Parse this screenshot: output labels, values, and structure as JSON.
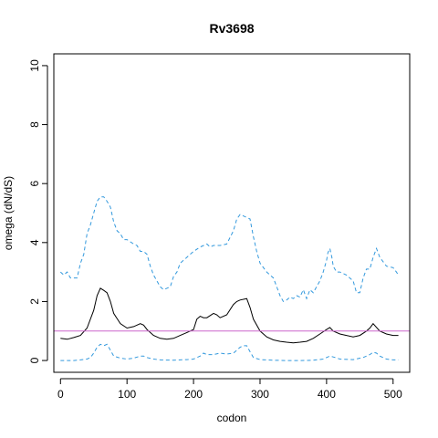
{
  "chart_data": {
    "type": "line",
    "title": "Rv3698",
    "xlabel": "codon",
    "ylabel": "omega (dN/dS)",
    "xlim": [
      -10,
      525
    ],
    "ylim": [
      -0.4,
      10.4
    ],
    "xticks": [
      0,
      100,
      200,
      300,
      400,
      500
    ],
    "yticks": [
      0,
      2,
      4,
      6,
      8,
      10
    ],
    "grid": false,
    "legend": "none",
    "reference_line": {
      "y": 1,
      "color": "#cc66cc"
    },
    "series": [
      {
        "style": "solid",
        "color": "#000000",
        "x": [
          0,
          10,
          20,
          30,
          40,
          50,
          55,
          60,
          65,
          70,
          75,
          80,
          90,
          100,
          110,
          120,
          125,
          130,
          140,
          150,
          160,
          170,
          180,
          190,
          200,
          205,
          210,
          215,
          220,
          230,
          235,
          240,
          250,
          260,
          265,
          270,
          280,
          285,
          290,
          300,
          310,
          320,
          330,
          340,
          350,
          360,
          370,
          380,
          390,
          400,
          405,
          410,
          420,
          430,
          440,
          450,
          460,
          465,
          470,
          480,
          490,
          500,
          508
        ],
        "y": [
          0.75,
          0.72,
          0.78,
          0.85,
          1.1,
          1.7,
          2.2,
          2.45,
          2.38,
          2.3,
          2.0,
          1.6,
          1.25,
          1.1,
          1.15,
          1.25,
          1.2,
          1.05,
          0.85,
          0.75,
          0.72,
          0.75,
          0.85,
          0.95,
          1.05,
          1.4,
          1.5,
          1.45,
          1.45,
          1.6,
          1.55,
          1.45,
          1.55,
          1.9,
          2.0,
          2.05,
          2.1,
          1.8,
          1.4,
          1.0,
          0.8,
          0.7,
          0.65,
          0.62,
          0.6,
          0.62,
          0.65,
          0.75,
          0.9,
          1.05,
          1.12,
          1.0,
          0.9,
          0.85,
          0.8,
          0.85,
          1.0,
          1.1,
          1.25,
          1.0,
          0.9,
          0.85,
          0.85
        ]
      },
      {
        "style": "dashed",
        "color": "#3399dd",
        "x": [
          0,
          5,
          10,
          15,
          20,
          25,
          30,
          35,
          40,
          45,
          50,
          55,
          60,
          65,
          70,
          75,
          80,
          85,
          90,
          95,
          100,
          110,
          115,
          120,
          125,
          130,
          135,
          140,
          150,
          155,
          160,
          165,
          170,
          175,
          180,
          190,
          200,
          210,
          220,
          225,
          230,
          240,
          250,
          260,
          265,
          270,
          275,
          280,
          285,
          290,
          295,
          300,
          310,
          320,
          330,
          335,
          340,
          345,
          350,
          355,
          360,
          365,
          370,
          375,
          380,
          385,
          390,
          395,
          400,
          402,
          405,
          408,
          410,
          415,
          420,
          430,
          440,
          445,
          450,
          455,
          460,
          465,
          470,
          475,
          480,
          490,
          500,
          505,
          508
        ],
        "y": [
          3.0,
          2.9,
          3.0,
          2.8,
          2.8,
          2.8,
          3.3,
          3.6,
          4.3,
          4.6,
          5.0,
          5.4,
          5.55,
          5.55,
          5.4,
          5.2,
          4.7,
          4.4,
          4.3,
          4.1,
          4.1,
          3.95,
          3.9,
          3.7,
          3.7,
          3.6,
          3.2,
          2.9,
          2.5,
          2.4,
          2.45,
          2.5,
          2.85,
          3.0,
          3.3,
          3.5,
          3.7,
          3.85,
          3.95,
          3.85,
          3.9,
          3.9,
          3.95,
          4.4,
          4.8,
          4.95,
          4.9,
          4.85,
          4.8,
          4.2,
          3.7,
          3.3,
          3.0,
          2.8,
          2.2,
          2.0,
          2.05,
          2.15,
          2.1,
          2.2,
          2.15,
          2.4,
          2.1,
          2.4,
          2.3,
          2.5,
          2.7,
          3.0,
          3.4,
          3.65,
          3.8,
          3.5,
          3.2,
          3.0,
          3.0,
          2.9,
          2.7,
          2.3,
          2.3,
          2.8,
          3.1,
          3.1,
          3.5,
          3.8,
          3.5,
          3.2,
          3.15,
          3.0,
          2.9
        ]
      },
      {
        "style": "dashed",
        "color": "#3399dd",
        "x": [
          0,
          20,
          30,
          40,
          45,
          50,
          55,
          60,
          65,
          70,
          75,
          80,
          90,
          100,
          110,
          120,
          125,
          130,
          140,
          150,
          170,
          180,
          190,
          200,
          210,
          215,
          220,
          230,
          240,
          250,
          260,
          265,
          270,
          275,
          280,
          285,
          290,
          300,
          320,
          340,
          360,
          380,
          395,
          400,
          405,
          410,
          420,
          440,
          455,
          465,
          470,
          475,
          480,
          490,
          500,
          508
        ],
        "y": [
          0.0,
          0.0,
          0.02,
          0.05,
          0.1,
          0.25,
          0.45,
          0.55,
          0.5,
          0.55,
          0.35,
          0.15,
          0.08,
          0.05,
          0.08,
          0.15,
          0.15,
          0.1,
          0.05,
          0.02,
          0.01,
          0.02,
          0.03,
          0.05,
          0.15,
          0.25,
          0.2,
          0.2,
          0.25,
          0.22,
          0.25,
          0.35,
          0.45,
          0.5,
          0.5,
          0.3,
          0.1,
          0.03,
          0.01,
          0.0,
          0.0,
          0.01,
          0.05,
          0.1,
          0.15,
          0.12,
          0.05,
          0.03,
          0.1,
          0.2,
          0.28,
          0.25,
          0.15,
          0.05,
          0.02,
          0.02
        ]
      }
    ]
  }
}
